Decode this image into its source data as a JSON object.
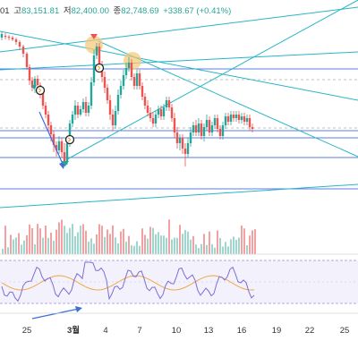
{
  "header": {
    "open_fragment": "01",
    "high_label": "고",
    "high_value": "83,151.81",
    "low_label": "저",
    "low_value": "82,400.00",
    "close_label": "종",
    "close_value": "82,748.69",
    "change": "+338.67 (+0.41%)",
    "change_color": "#26a69a"
  },
  "x_axis": {
    "labels": [
      "25",
      "3월",
      "4",
      "7",
      "10",
      "13",
      "16",
      "19",
      "22",
      "25"
    ]
  },
  "colors": {
    "up": "#26a69a",
    "down": "#ef5350",
    "trendline": "#27b5c7",
    "hline": "#5b7fe0",
    "rsi": "#7b6fd6",
    "rsi_ma": "#f0a848",
    "rsi_band": "#ece8fb",
    "annotation_arrow": "#3d6fd6",
    "highlight": "#f7c873"
  },
  "icons": [
    "arrow-down-marker-icon",
    "arrow-up-marker-icon",
    "circle-marker-icon",
    "indicator-arrow-icon"
  ]
}
